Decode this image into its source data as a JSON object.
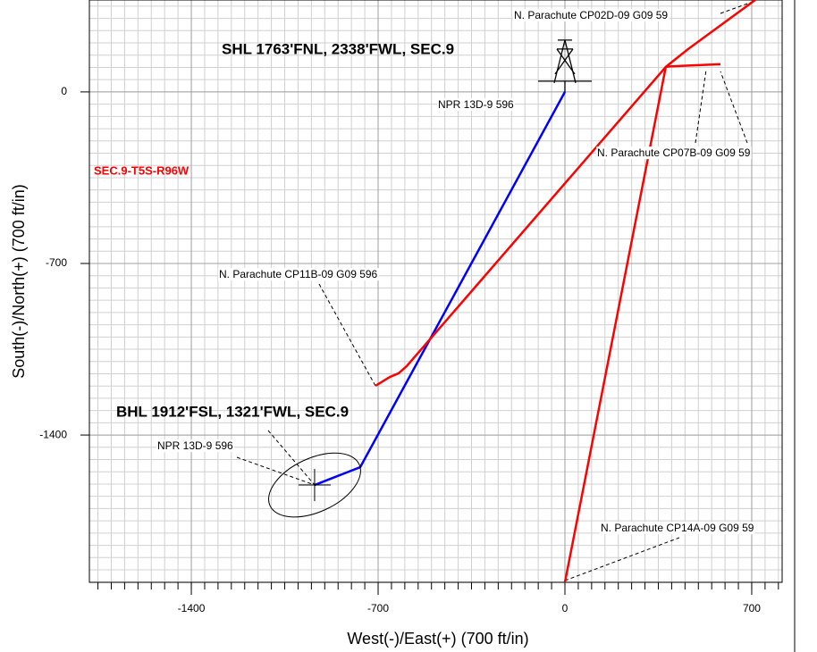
{
  "chart_data": {
    "type": "line",
    "x_label": "West(-)/East(+) (700 ft/in)",
    "y_label": "South(-)/North(+) (700 ft/in)",
    "xlim": [
      -1782,
      814
    ],
    "ylim": [
      -2001,
      375
    ],
    "xticks": [
      -1400,
      -700,
      0,
      700
    ],
    "yticks": [
      -1400,
      -700,
      0
    ],
    "grid": true,
    "texts": [
      "SHL 1763'FNL, 2338'FWL, SEC.9",
      "BHL 1912'FSL, 1321'FWL, SEC.9",
      "SEC.9-T5S-R96W"
    ],
    "annotations": [
      "N. Parachute CP02D-09 G09 59",
      "NPR 13D-9 596",
      "N. Parachute CP07B-09 G09 59",
      "N. Parachute CP11B-09 G09 596",
      "NPR 13D-9 596",
      "N. Parachute CP14A-09 G09 59"
    ],
    "series": [
      {
        "color": "#0000ff",
        "x": [
          0,
          -767,
          -938
        ],
        "values": [
          0,
          -1531,
          -1604
        ]
      },
      {
        "color": "#ff0000",
        "x": [
          -710,
          -656,
          -623,
          -593,
          378,
          462,
          713
        ],
        "values": [
          -1199,
          -1163,
          -1148,
          -1119,
          102,
          175,
          375
        ]
      },
      {
        "color": "#ff0000",
        "x": [
          0,
          378,
          392,
          583
        ],
        "values": [
          -2001,
          102,
          104,
          113
        ]
      }
    ]
  }
}
